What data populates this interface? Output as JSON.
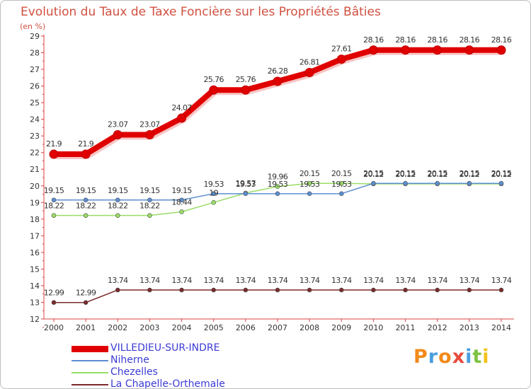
{
  "header": {
    "title": "Evolution du Taux de Taxe Foncière sur les Propriétés Bâties",
    "subtitle": "(en %)"
  },
  "logo": {
    "text": "Proxiti",
    "colors": [
      "#f28a1a",
      "#4a9ee0",
      "#f28a1a",
      "#e84a3c",
      "#4a9ee0",
      "#7cc242",
      "#f2c21a"
    ]
  },
  "chart_data": {
    "type": "line",
    "title": "Evolution du Taux de Taxe Foncière sur les Propriétés Bâties",
    "ylabel": "(en %)",
    "x": [
      "2000",
      "2001",
      "2002",
      "2003",
      "2004",
      "2005",
      "2006",
      "2007",
      "2008",
      "2009",
      "2010",
      "2011",
      "2012",
      "2013",
      "2014"
    ],
    "ylim": [
      12,
      29
    ],
    "yticks": [
      12,
      13,
      14,
      15,
      16,
      17,
      18,
      19,
      20,
      21,
      22,
      23,
      24,
      25,
      26,
      27,
      28,
      29
    ],
    "series": [
      {
        "name": "VILLEDIEU-SUR-INDRE",
        "color": "#e00000",
        "width": 8,
        "values": [
          21.9,
          21.9,
          23.07,
          23.07,
          24.07,
          25.76,
          25.76,
          26.28,
          26.81,
          27.61,
          28.16,
          28.16,
          28.16,
          28.16,
          28.16
        ],
        "labels": [
          "21.9",
          "21.9",
          "23.07",
          "23.07",
          "24.07",
          "25.76",
          "25.76",
          "26.28",
          "26.81",
          "27.61",
          "28.16",
          "28.16",
          "28.16",
          "28.16",
          "28.16"
        ]
      },
      {
        "name": "Niherne",
        "color": "#5b8ed0",
        "width": 1.5,
        "values": [
          19.15,
          19.15,
          19.15,
          19.15,
          19.15,
          19.53,
          19.53,
          19.53,
          19.53,
          19.53,
          20.15,
          20.15,
          20.15,
          20.15,
          20.15
        ],
        "labels": [
          "19.15",
          "19.15",
          "19.15",
          "19.15",
          "19.15",
          "19.53",
          "19.53",
          "19.53",
          "19.53",
          "19.53",
          "20.15",
          "20.15",
          "20.15",
          "20.15",
          "20.15"
        ]
      },
      {
        "name": "Chezelles",
        "color": "#99dd66",
        "width": 1.5,
        "values": [
          18.22,
          18.22,
          18.22,
          18.22,
          18.44,
          19.0,
          19.57,
          19.96,
          20.15,
          20.15,
          20.12,
          20.12,
          20.12,
          20.12,
          20.12
        ],
        "labels": [
          "18.22",
          "18.22",
          "18.22",
          "18.22",
          "18.44",
          "19",
          "19.57",
          "19.96",
          "20.15",
          "20.15",
          "20.12",
          "20.12",
          "20.12",
          "20.12",
          "20.12"
        ]
      },
      {
        "name": "La Chapelle-Orthemale",
        "color": "#7a2a2a",
        "width": 1.5,
        "values": [
          12.99,
          12.99,
          13.74,
          13.74,
          13.74,
          13.74,
          13.74,
          13.74,
          13.74,
          13.74,
          13.74,
          13.74,
          13.74,
          13.74,
          13.74
        ],
        "labels": [
          "12.99",
          "12.99",
          "13.74",
          "13.74",
          "13.74",
          "13.74",
          "13.74",
          "13.74",
          "13.74",
          "13.74",
          "13.74",
          "13.74",
          "13.74",
          "13.74",
          "13.74"
        ]
      }
    ],
    "grid": false,
    "legend": "bottom-left"
  }
}
